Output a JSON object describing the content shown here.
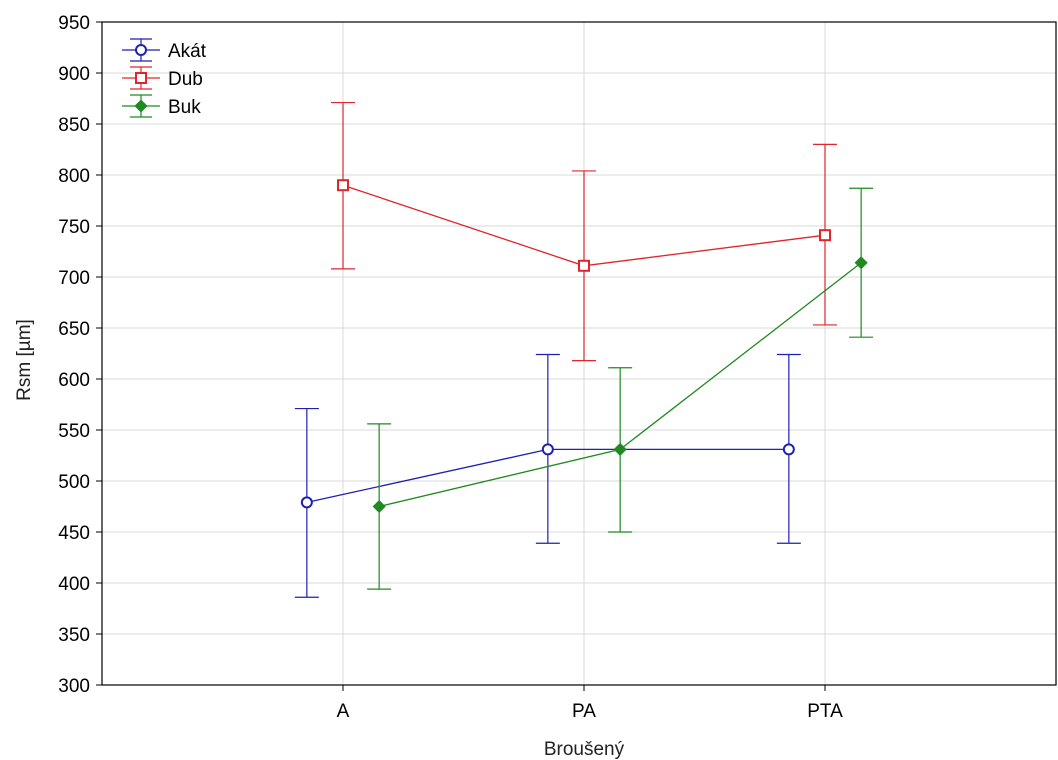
{
  "chart_data": {
    "type": "line",
    "title": "",
    "xlabel": "Broušený",
    "ylabel": "Rsm [µm]",
    "categories": [
      "A",
      "PA",
      "PTA"
    ],
    "ylim": [
      300,
      950
    ],
    "yticks": [
      300,
      350,
      400,
      450,
      500,
      550,
      600,
      650,
      700,
      750,
      800,
      850,
      900,
      950
    ],
    "grid": true,
    "legend_position": "top-left",
    "series": [
      {
        "name": "Akát",
        "color": "#1f1fb4",
        "marker": "circle",
        "values": [
          479,
          531,
          531
        ],
        "lower": [
          386,
          439,
          439
        ],
        "upper": [
          571,
          624,
          624
        ],
        "offset": -0.15
      },
      {
        "name": "Dub",
        "color": "#e0252b",
        "marker": "square",
        "values": [
          790,
          711,
          741
        ],
        "lower": [
          708,
          618,
          653
        ],
        "upper": [
          871,
          804,
          830
        ],
        "offset": 0.0
      },
      {
        "name": "Buk",
        "color": "#1f8a1f",
        "marker": "diamond",
        "values": [
          475,
          531,
          714
        ],
        "lower": [
          394,
          450,
          641
        ],
        "upper": [
          556,
          611,
          787
        ],
        "offset": 0.15
      }
    ]
  }
}
